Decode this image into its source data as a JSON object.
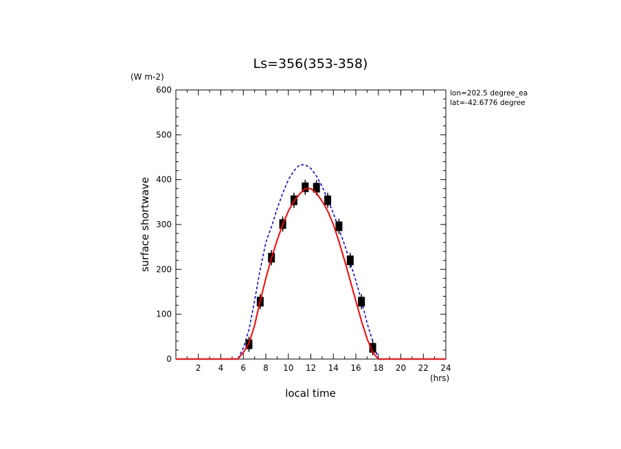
{
  "chart_data": {
    "type": "line",
    "title": "Ls=356(353-358)",
    "xlabel": "local time",
    "ylabel": "surface shortwave",
    "x_unit": "(hrs)",
    "y_unit": "(W m-2)",
    "xlim": [
      0,
      24
    ],
    "ylim": [
      0,
      600
    ],
    "x_ticks": [
      "2",
      "4",
      "6",
      "8",
      "10",
      "12",
      "14",
      "16",
      "18",
      "20",
      "22",
      "24"
    ],
    "y_ticks": [
      "0",
      "100",
      "200",
      "300",
      "400",
      "500",
      "600"
    ],
    "annotations": [
      "lon=202.5 degree_ea",
      "lat=-42.6776 degree"
    ],
    "series": [
      {
        "style": "dashed",
        "color": "#0000ff",
        "x": [
          0,
          1,
          2,
          3,
          4,
          5,
          5.5,
          6,
          6.5,
          7,
          7.5,
          8,
          8.5,
          9,
          9.5,
          10,
          10.5,
          11,
          11.5,
          12,
          12.5,
          13,
          13.5,
          14,
          14.5,
          15,
          15.5,
          16,
          16.5,
          17,
          17.5,
          18,
          18.5,
          19,
          20,
          21,
          22,
          23,
          24
        ],
        "y": [
          0,
          0,
          0,
          0,
          0,
          0,
          0,
          25,
          65,
          130,
          200,
          260,
          295,
          335,
          370,
          400,
          420,
          433,
          433,
          425,
          408,
          385,
          355,
          325,
          290,
          255,
          215,
          175,
          130,
          80,
          40,
          0,
          0,
          0,
          0,
          0,
          0,
          0,
          0
        ]
      },
      {
        "style": "solid",
        "color": "#ff0000",
        "x": [
          0,
          1,
          2,
          3,
          4,
          5,
          5.5,
          6,
          6.5,
          7,
          7.5,
          8,
          8.5,
          9,
          9.5,
          10,
          10.5,
          11,
          11.5,
          12,
          12.5,
          13,
          13.5,
          14,
          14.5,
          15,
          15.5,
          16,
          16.5,
          17,
          17.5,
          18,
          18.5,
          19,
          20,
          21,
          22,
          23,
          24
        ],
        "y": [
          0,
          0,
          0,
          0,
          0,
          0,
          0,
          15,
          35,
          75,
          130,
          180,
          225,
          265,
          300,
          330,
          352,
          368,
          380,
          380,
          370,
          352,
          330,
          300,
          262,
          220,
          175,
          130,
          85,
          45,
          15,
          0,
          0,
          0,
          0,
          0,
          0,
          0,
          0
        ]
      },
      {
        "style": "markers",
        "color": "#000000",
        "x": [
          6.5,
          7.5,
          8.5,
          9.5,
          10.5,
          11.5,
          12.5,
          13.5,
          14.5,
          15.5,
          16.5,
          17.5
        ],
        "y": [
          33,
          128,
          226,
          301,
          354,
          383,
          382,
          354,
          296,
          220,
          128,
          25
        ]
      }
    ]
  }
}
